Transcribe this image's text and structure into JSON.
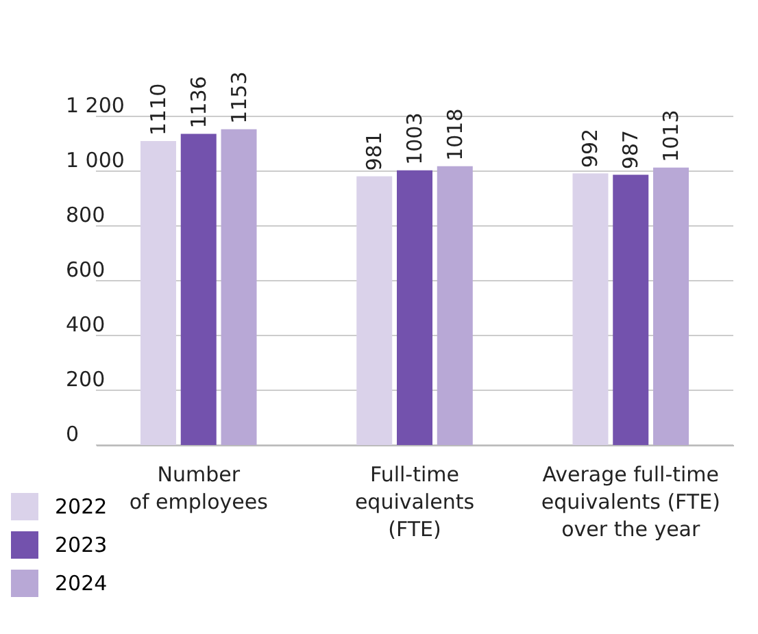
{
  "chart_data": {
    "type": "bar",
    "categories": [
      "Number\nof employees",
      "Full-time\nequivalents\n(FTE)",
      "Average full-time\nequivalents (FTE)\nover the year"
    ],
    "series": [
      {
        "name": "2022",
        "color": "#dad2ea",
        "values": [
          1110,
          981,
          992
        ]
      },
      {
        "name": "2023",
        "color": "#7352ad",
        "values": [
          1136,
          1003,
          987
        ]
      },
      {
        "name": "2024",
        "color": "#b8a8d6",
        "values": [
          1153,
          1018,
          1013
        ]
      }
    ],
    "ylim": [
      0,
      1200
    ],
    "yticks": [
      0,
      200,
      400,
      600,
      800,
      {
        "value": 1000,
        "label": "1 000"
      },
      {
        "value": 1200,
        "label": "1 200"
      }
    ],
    "grid": "y",
    "legend": "bottom left",
    "data_labels": true
  }
}
